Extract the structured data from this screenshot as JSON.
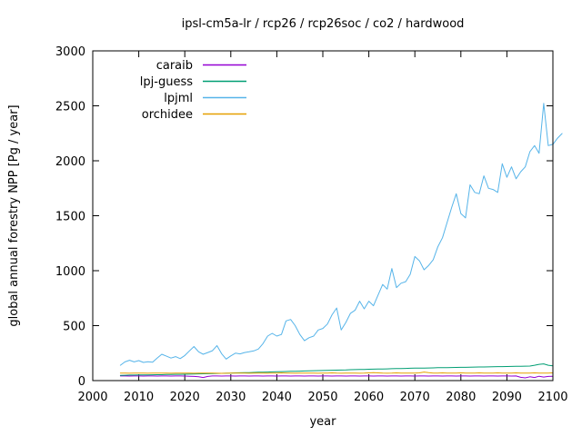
{
  "chart_data": {
    "type": "line",
    "title": "ipsl-cm5a-lr / rcp26 / rcp26soc / co2 / hardwood",
    "xlabel": "year",
    "ylabel": "global annual forestry NPP [Pg / year]",
    "xlim": [
      2000,
      2100
    ],
    "ylim": [
      0,
      3000
    ],
    "x_ticks": [
      2000,
      2010,
      2020,
      2030,
      2040,
      2050,
      2060,
      2070,
      2080,
      2090,
      2100
    ],
    "y_ticks": [
      0,
      500,
      1000,
      1500,
      2000,
      2500,
      3000
    ],
    "grid": false,
    "legend_position": "inside-top-left",
    "border_color": "#000000",
    "background_color": "#ffffff",
    "series": [
      {
        "name": "caraib",
        "color": "#9400d3",
        "x_start": 2006,
        "x_step": 1,
        "values": [
          42,
          42,
          41,
          42,
          42,
          41,
          42,
          42,
          41,
          42,
          42,
          41,
          42,
          42,
          41,
          40,
          38,
          35,
          28,
          38,
          42,
          42,
          41,
          42,
          42,
          41,
          42,
          42,
          41,
          42,
          42,
          41,
          42,
          42,
          41,
          42,
          42,
          41,
          42,
          42,
          41,
          42,
          42,
          41,
          42,
          42,
          41,
          42,
          42,
          41,
          42,
          42,
          41,
          42,
          42,
          41,
          42,
          42,
          41,
          42,
          42,
          41,
          42,
          42,
          41,
          42,
          42,
          41,
          42,
          42,
          41,
          42,
          42,
          41,
          42,
          42,
          41,
          42,
          42,
          41,
          42,
          42,
          41,
          42,
          42,
          41,
          42,
          30,
          25,
          35,
          28,
          40,
          32,
          38,
          40
        ]
      },
      {
        "name": "lpj-guess",
        "color": "#009e73",
        "x_start": 2006,
        "x_step": 1,
        "values": [
          48,
          49,
          50,
          50,
          51,
          52,
          52,
          53,
          54,
          54,
          55,
          56,
          57,
          57,
          58,
          59,
          60,
          61,
          62,
          63,
          64,
          65,
          66,
          67,
          68,
          70,
          71,
          72,
          73,
          74,
          76,
          77,
          78,
          79,
          80,
          82,
          83,
          84,
          85,
          86,
          88,
          89,
          90,
          91,
          92,
          93,
          94,
          95,
          96,
          97,
          99,
          100,
          101,
          102,
          103,
          104,
          105,
          106,
          107,
          108,
          109,
          110,
          111,
          112,
          113,
          114,
          114,
          115,
          116,
          117,
          118,
          118,
          119,
          120,
          121,
          121,
          122,
          123,
          124,
          124,
          125,
          126,
          127,
          127,
          128,
          129,
          130,
          130,
          131,
          132,
          140,
          148,
          152,
          140,
          135
        ]
      },
      {
        "name": "lpjml",
        "color": "#56b4e9",
        "x_start": 2006,
        "x_step": 1,
        "values": [
          140,
          170,
          185,
          170,
          182,
          165,
          172,
          168,
          205,
          240,
          222,
          205,
          218,
          200,
          228,
          270,
          310,
          262,
          240,
          255,
          272,
          318,
          245,
          196,
          225,
          250,
          243,
          255,
          262,
          270,
          288,
          336,
          405,
          430,
          405,
          420,
          543,
          556,
          500,
          420,
          363,
          390,
          405,
          460,
          474,
          515,
          598,
          660,
          460,
          529,
          612,
          640,
          722,
          653,
          722,
          681,
          778,
          874,
          832,
          1020,
          846,
          886,
          900,
          967,
          1129,
          1089,
          1008,
          1048,
          1100,
          1218,
          1300,
          1437,
          1575,
          1700,
          1520,
          1480,
          1781,
          1712,
          1700,
          1863,
          1750,
          1739,
          1712,
          1973,
          1850,
          1945,
          1836,
          1900,
          1945,
          2083,
          2138,
          2069,
          2522,
          2138,
          2150,
          2206,
          2248
        ]
      },
      {
        "name": "orchidee",
        "color": "#e69f00",
        "x_start": 2006,
        "x_step": 1,
        "values": [
          68,
          68,
          67,
          68,
          69,
          68,
          67,
          68,
          68,
          69,
          68,
          67,
          68,
          69,
          68,
          68,
          67,
          68,
          69,
          68,
          68,
          67,
          66,
          67,
          68,
          68,
          69,
          68,
          67,
          68,
          69,
          68,
          67,
          68,
          68,
          70,
          69,
          68,
          67,
          68,
          69,
          68,
          68,
          67,
          68,
          69,
          70,
          68,
          67,
          68,
          69,
          68,
          67,
          68,
          70,
          72,
          70,
          68,
          67,
          68,
          70,
          69,
          68,
          68,
          69,
          70,
          78,
          72,
          68,
          69,
          70,
          69,
          68,
          69,
          70,
          69,
          68,
          69,
          70,
          69,
          68,
          69,
          70,
          69,
          68,
          69,
          70,
          69,
          68,
          69,
          70,
          69,
          68,
          69,
          70
        ]
      }
    ]
  }
}
